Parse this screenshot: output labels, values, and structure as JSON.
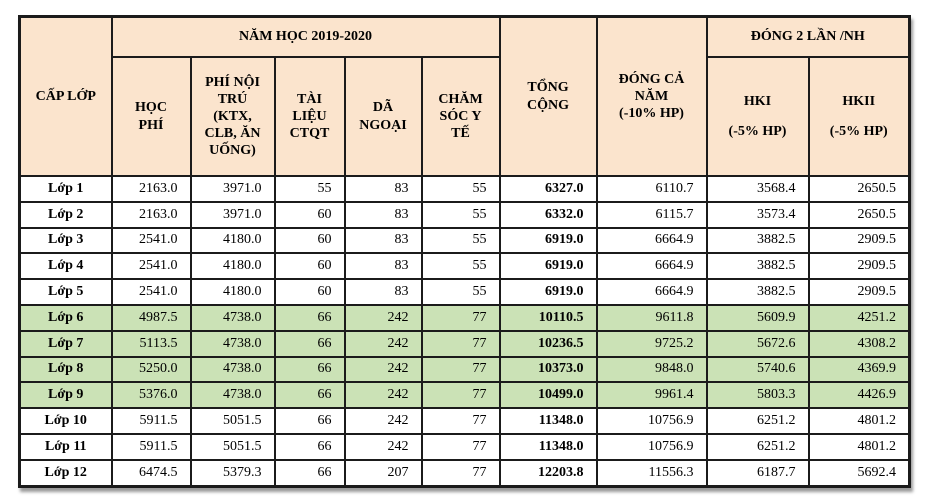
{
  "colors": {
    "header_bg": "#fbe4cd",
    "highlight_bg": "#cbe2b6",
    "border": "#1b1b1b"
  },
  "table": {
    "header": {
      "cap_lop": "CẤP LỚP",
      "nam_hoc": "NĂM HỌC 2019-2020",
      "hoc_phi": "HỌC PHÍ",
      "phi_noi_tru": "PHÍ NỘI TRÚ (KTX, CLB, ĂN UỐNG)",
      "tai_lieu": "TÀI LIỆU CTQT",
      "da_ngoai": "DÃ NGOẠI",
      "cham_soc": "CHĂM SÓC Y TẾ",
      "tong_cong": "TỔNG CỘNG",
      "dong_ca_nam": "ĐÓNG CẢ NĂM",
      "dong_ca_nam_note": "(-10% HP)",
      "dong_2_lan": "ĐÓNG 2 LẦN /NH",
      "hki": "HKI",
      "hki_note": "(-5% HP)",
      "hkii": "HKII",
      "hkii_note": "(-5% HP)"
    },
    "rows": [
      {
        "label": "Lớp 1",
        "highlight": false,
        "values": [
          "2163.0",
          "3971.0",
          "55",
          "83",
          "55",
          "6327.0",
          "6110.7",
          "3568.4",
          "2650.5"
        ]
      },
      {
        "label": "Lớp 2",
        "highlight": false,
        "values": [
          "2163.0",
          "3971.0",
          "60",
          "83",
          "55",
          "6332.0",
          "6115.7",
          "3573.4",
          "2650.5"
        ]
      },
      {
        "label": "Lớp 3",
        "highlight": false,
        "values": [
          "2541.0",
          "4180.0",
          "60",
          "83",
          "55",
          "6919.0",
          "6664.9",
          "3882.5",
          "2909.5"
        ]
      },
      {
        "label": "Lớp 4",
        "highlight": false,
        "values": [
          "2541.0",
          "4180.0",
          "60",
          "83",
          "55",
          "6919.0",
          "6664.9",
          "3882.5",
          "2909.5"
        ]
      },
      {
        "label": "Lớp 5",
        "highlight": false,
        "values": [
          "2541.0",
          "4180.0",
          "60",
          "83",
          "55",
          "6919.0",
          "6664.9",
          "3882.5",
          "2909.5"
        ]
      },
      {
        "label": "Lớp 6",
        "highlight": true,
        "values": [
          "4987.5",
          "4738.0",
          "66",
          "242",
          "77",
          "10110.5",
          "9611.8",
          "5609.9",
          "4251.2"
        ]
      },
      {
        "label": "Lớp 7",
        "highlight": true,
        "values": [
          "5113.5",
          "4738.0",
          "66",
          "242",
          "77",
          "10236.5",
          "9725.2",
          "5672.6",
          "4308.2"
        ]
      },
      {
        "label": "Lớp 8",
        "highlight": true,
        "values": [
          "5250.0",
          "4738.0",
          "66",
          "242",
          "77",
          "10373.0",
          "9848.0",
          "5740.6",
          "4369.9"
        ]
      },
      {
        "label": "Lớp 9",
        "highlight": true,
        "values": [
          "5376.0",
          "4738.0",
          "66",
          "242",
          "77",
          "10499.0",
          "9961.4",
          "5803.3",
          "4426.9"
        ]
      },
      {
        "label": "Lớp 10",
        "highlight": false,
        "values": [
          "5911.5",
          "5051.5",
          "66",
          "242",
          "77",
          "11348.0",
          "10756.9",
          "6251.2",
          "4801.2"
        ]
      },
      {
        "label": "Lớp 11",
        "highlight": false,
        "values": [
          "5911.5",
          "5051.5",
          "66",
          "242",
          "77",
          "11348.0",
          "10756.9",
          "6251.2",
          "4801.2"
        ]
      },
      {
        "label": "Lớp 12",
        "highlight": false,
        "values": [
          "6474.5",
          "5379.3",
          "66",
          "207",
          "77",
          "12203.8",
          "11556.3",
          "6187.7",
          "5692.4"
        ]
      }
    ]
  }
}
